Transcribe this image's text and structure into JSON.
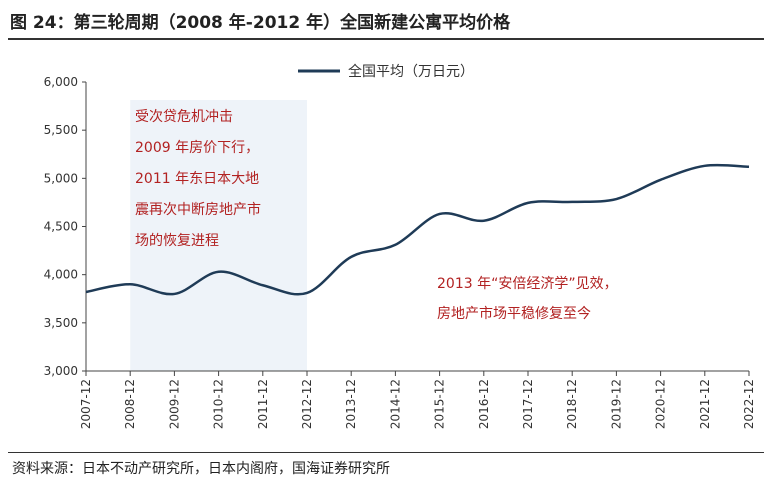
{
  "title": "图 24：第三轮周期（2008 年-2012 年）全国新建公寓平均价格",
  "source": "资料来源：日本不动产研究所，日本内阁府，国海证券研究所",
  "chart_data": {
    "type": "line",
    "categories": [
      "2007-12",
      "2008-12",
      "2009-12",
      "2010-12",
      "2011-12",
      "2012-12",
      "2013-12",
      "2014-12",
      "2015-12",
      "2016-12",
      "2017-12",
      "2018-12",
      "2019-12",
      "2020-12",
      "2021-12",
      "2022-12"
    ],
    "series": [
      {
        "name": "全国平均（万日元）",
        "values": [
          3820,
          3900,
          3800,
          4030,
          3890,
          3810,
          4185,
          4310,
          4630,
          4560,
          4745,
          4755,
          4785,
          4985,
          5130,
          5120
        ],
        "color": "#1f3b57"
      }
    ],
    "ylim": [
      3000,
      6000
    ],
    "yticks": [
      "3,000",
      "3,500",
      "4,000",
      "4,500",
      "5,000",
      "5,500",
      "6,000"
    ],
    "legend": "top",
    "grid": false,
    "shaded_range": [
      "2008-12",
      "2012-12"
    ],
    "shade_color": "#eef3f9",
    "annotations": [
      {
        "lines": [
          "受次贷危机冲击",
          "2009 年房价下行，",
          "2011 年东日本大地",
          "震再次中断房地产市",
          "场的恢复进程"
        ],
        "color": "#b22222"
      },
      {
        "lines": [
          "2013 年“安倍经济学”见效，",
          "房地产市场平稳修复至今"
        ],
        "color": "#b22222"
      }
    ]
  }
}
